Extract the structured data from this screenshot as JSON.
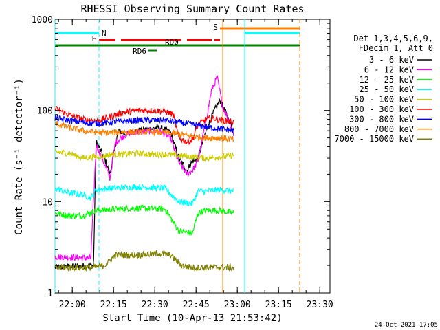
{
  "chart_data": {
    "type": "line",
    "title": "RHESSI Observing Summary Count Rates",
    "xlabel": "Start Time (10-Apr-13 21:53:42)",
    "ylabel": "Count Rate (s⁻¹ detector⁻¹)",
    "y_scale": "log",
    "ylim": [
      1,
      1000
    ],
    "xlim_minutes": [
      0,
      100
    ],
    "x_ticks": [
      "22:00",
      "22:15",
      "22:30",
      "22:45",
      "23:00",
      "23:15",
      "23:30"
    ],
    "y_ticks": [
      "1",
      "10",
      "100",
      "1000"
    ],
    "legend_header": [
      "Det 1,3,4,5,6,9,",
      "FDecim 1, Att 0"
    ],
    "legend_position": "right",
    "footer_date": "24-Oct-2021 17:05",
    "series": [
      {
        "name": "3 - 6 keV",
        "color": "#000000",
        "values": [
          [
            0,
            1.9
          ],
          [
            14,
            2.0
          ],
          [
            15,
            45
          ],
          [
            18,
            30
          ],
          [
            20,
            20
          ],
          [
            23,
            60
          ],
          [
            26,
            55
          ],
          [
            30,
            60
          ],
          [
            38,
            65
          ],
          [
            42,
            58
          ],
          [
            45,
            30
          ],
          [
            48,
            22
          ],
          [
            50,
            28
          ],
          [
            52,
            30
          ],
          [
            55,
            60
          ],
          [
            58,
            100
          ],
          [
            60,
            130
          ],
          [
            62,
            95
          ],
          [
            65,
            60
          ]
        ]
      },
      {
        "name": "6 - 12 keV",
        "color": "#ff00ff",
        "values": [
          [
            0,
            2.5
          ],
          [
            13,
            2.4
          ],
          [
            15,
            42
          ],
          [
            18,
            26
          ],
          [
            20,
            18
          ],
          [
            22,
            45
          ],
          [
            26,
            55
          ],
          [
            30,
            58
          ],
          [
            38,
            60
          ],
          [
            42,
            50
          ],
          [
            45,
            27
          ],
          [
            48,
            20
          ],
          [
            50,
            22
          ],
          [
            52,
            28
          ],
          [
            55,
            80
          ],
          [
            57,
            170
          ],
          [
            59,
            230
          ],
          [
            61,
            110
          ],
          [
            63,
            80
          ],
          [
            65,
            55
          ]
        ]
      },
      {
        "name": "12 - 25 keV",
        "color": "#00ff00",
        "values": [
          [
            0,
            7.5
          ],
          [
            5,
            7.0
          ],
          [
            10,
            7.0
          ],
          [
            15,
            8
          ],
          [
            20,
            8.2
          ],
          [
            30,
            8.5
          ],
          [
            40,
            8.3
          ],
          [
            45,
            4.8
          ],
          [
            50,
            4.5
          ],
          [
            52,
            7.5
          ],
          [
            55,
            8
          ],
          [
            60,
            8
          ],
          [
            65,
            7.5
          ]
        ]
      },
      {
        "name": "25 - 50 keV",
        "color": "#00ffff",
        "values": [
          [
            0,
            14
          ],
          [
            5,
            12.5
          ],
          [
            10,
            12
          ],
          [
            13,
            11
          ],
          [
            15,
            13.5
          ],
          [
            20,
            14
          ],
          [
            30,
            14.5
          ],
          [
            40,
            14
          ],
          [
            45,
            10
          ],
          [
            50,
            9.5
          ],
          [
            52,
            13
          ],
          [
            55,
            13
          ],
          [
            60,
            13.5
          ],
          [
            65,
            13
          ]
        ]
      },
      {
        "name": "50 - 100 keV",
        "color": "#cccc00",
        "values": [
          [
            0,
            35
          ],
          [
            5,
            34
          ],
          [
            10,
            30
          ],
          [
            14,
            31
          ],
          [
            17,
            31
          ],
          [
            20,
            33
          ],
          [
            25,
            33
          ],
          [
            30,
            34
          ],
          [
            35,
            33
          ],
          [
            40,
            33
          ],
          [
            45,
            32
          ],
          [
            50,
            31
          ],
          [
            55,
            30
          ],
          [
            60,
            31
          ],
          [
            65,
            32
          ]
        ]
      },
      {
        "name": "100 - 300 keV",
        "color": "#ff0000",
        "values": [
          [
            0,
            105
          ],
          [
            5,
            90
          ],
          [
            10,
            80
          ],
          [
            14,
            78
          ],
          [
            16,
            78
          ],
          [
            20,
            85
          ],
          [
            25,
            95
          ],
          [
            30,
            100
          ],
          [
            35,
            100
          ],
          [
            40,
            98
          ],
          [
            43,
            90
          ],
          [
            45,
            50
          ],
          [
            48,
            45
          ],
          [
            50,
            48
          ],
          [
            52,
            70
          ],
          [
            55,
            80
          ],
          [
            58,
            82
          ],
          [
            60,
            78
          ],
          [
            65,
            75
          ]
        ]
      },
      {
        "name": "300 - 800 keV",
        "color": "#0000ff",
        "values": [
          [
            0,
            82
          ],
          [
            5,
            78
          ],
          [
            10,
            74
          ],
          [
            14,
            72
          ],
          [
            16,
            72
          ],
          [
            20,
            74
          ],
          [
            25,
            76
          ],
          [
            30,
            78
          ],
          [
            35,
            78
          ],
          [
            40,
            78
          ],
          [
            45,
            74
          ],
          [
            50,
            70
          ],
          [
            55,
            66
          ],
          [
            60,
            63
          ],
          [
            65,
            60
          ]
        ]
      },
      {
        "name": "800 - 7000 keV",
        "color": "#ff8000",
        "values": [
          [
            0,
            72
          ],
          [
            5,
            65
          ],
          [
            10,
            60
          ],
          [
            14,
            58
          ],
          [
            16,
            57
          ],
          [
            20,
            57
          ],
          [
            25,
            58
          ],
          [
            30,
            58
          ],
          [
            35,
            58
          ],
          [
            40,
            57
          ],
          [
            45,
            55
          ],
          [
            50,
            52
          ],
          [
            55,
            50
          ],
          [
            60,
            50
          ],
          [
            65,
            48
          ]
        ]
      },
      {
        "name": "7000 - 15000 keV",
        "color": "#808000",
        "values": [
          [
            0,
            1.9
          ],
          [
            14,
            1.9
          ],
          [
            18,
            2.0
          ],
          [
            22,
            2.6
          ],
          [
            30,
            2.6
          ],
          [
            38,
            2.7
          ],
          [
            42,
            2.6
          ],
          [
            46,
            2.0
          ],
          [
            50,
            1.9
          ],
          [
            55,
            1.9
          ],
          [
            60,
            1.9
          ],
          [
            65,
            1.9
          ]
        ]
      }
    ],
    "flag_bars": [
      {
        "label": "N",
        "color": "#00ffff",
        "segments": [
          [
            0,
            16
          ],
          [
            69,
            89
          ]
        ],
        "level": "top"
      },
      {
        "label": "S",
        "color": "#ff8000",
        "segments": [
          [
            60,
            89
          ]
        ],
        "level": "upper"
      },
      {
        "label": "F",
        "color": "#ff0000",
        "segments": [
          [
            16,
            22
          ],
          [
            24,
            46
          ],
          [
            48,
            57
          ],
          [
            58,
            60
          ]
        ],
        "level": "mid"
      },
      {
        "label": "RD0",
        "color": "#008000",
        "segments": [
          [
            0,
            89
          ]
        ],
        "level": "rd0"
      },
      {
        "label": "RD6",
        "color": "#008000",
        "segments": [
          [
            34,
            37
          ]
        ],
        "level": "rd6"
      }
    ],
    "vlines": [
      {
        "x": 0,
        "color": "#00ffff",
        "style": "solid"
      },
      {
        "x": 16,
        "color": "#00ffff",
        "style": "dashed"
      },
      {
        "x": 61,
        "color": "#ff8000",
        "style": "solid"
      },
      {
        "x": 69,
        "color": "#00ffff",
        "style": "solid"
      },
      {
        "x": 89,
        "color": "#ff8000",
        "style": "dashed"
      }
    ]
  }
}
